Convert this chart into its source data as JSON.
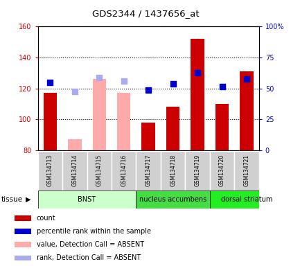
{
  "title": "GDS2344 / 1437656_at",
  "samples": [
    "GSM134713",
    "GSM134714",
    "GSM134715",
    "GSM134716",
    "GSM134717",
    "GSM134718",
    "GSM134719",
    "GSM134720",
    "GSM134721"
  ],
  "count_values": [
    117,
    null,
    null,
    null,
    98,
    108,
    152,
    110,
    131
  ],
  "count_absent_values": [
    null,
    87,
    126,
    117,
    null,
    null,
    null,
    null,
    null
  ],
  "rank_values": [
    124,
    null,
    null,
    null,
    119,
    123,
    130,
    121,
    126
  ],
  "rank_absent_values": [
    null,
    118,
    127,
    125,
    null,
    null,
    null,
    null,
    null
  ],
  "ylim_left": [
    80,
    160
  ],
  "ylim_right": [
    0,
    100
  ],
  "yticks_left": [
    80,
    100,
    120,
    140,
    160
  ],
  "yticks_right": [
    0,
    25,
    50,
    75,
    100
  ],
  "ytick_labels_right": [
    "0",
    "25",
    "50",
    "75",
    "100%"
  ],
  "tissue_groups": [
    {
      "label": "BNST",
      "start": 0,
      "end": 4,
      "color": "#ccffcc"
    },
    {
      "label": "nucleus accumbens",
      "start": 4,
      "end": 7,
      "color": "#55dd55"
    },
    {
      "label": "dorsal striatum",
      "start": 7,
      "end": 10,
      "color": "#33ee33"
    }
  ],
  "bar_color_present": "#cc0000",
  "bar_color_absent": "#ffaaaa",
  "dot_color_present": "#0000cc",
  "dot_color_absent": "#aaaaee",
  "bar_width": 0.55,
  "dot_size": 28,
  "legend_items": [
    {
      "color": "#cc0000",
      "label": "count"
    },
    {
      "color": "#0000cc",
      "label": "percentile rank within the sample"
    },
    {
      "color": "#ffaaaa",
      "label": "value, Detection Call = ABSENT"
    },
    {
      "color": "#aaaaee",
      "label": "rank, Detection Call = ABSENT"
    }
  ]
}
